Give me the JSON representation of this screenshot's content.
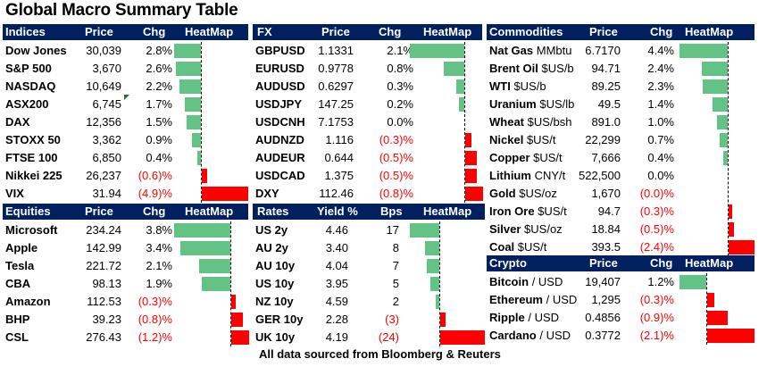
{
  "title": "Global Macro Summary Table",
  "footer": "All data sourced from Bloomberg & Reuters",
  "colors": {
    "header_bg": "#002060",
    "positive_bar": "#63c384",
    "negative_bar": "#ff0000",
    "negative_text": "#ff0000"
  },
  "indices": {
    "headers": [
      "Indices",
      "Price",
      "Chg",
      "HeatMap"
    ],
    "rows": [
      {
        "name": "Dow Jones",
        "price": "30,039",
        "chg": "2.8%",
        "value": 2.8
      },
      {
        "name": "S&P 500",
        "price": "3,670",
        "chg": "2.6%",
        "value": 2.6
      },
      {
        "name": "NASDAQ",
        "price": "10,649",
        "chg": "2.2%",
        "value": 2.2
      },
      {
        "name": "ASX200",
        "price": "6,745",
        "chg": "1.7%",
        "value": 1.7
      },
      {
        "name": "DAX",
        "price": "12,356",
        "chg": "1.5%",
        "value": 1.5
      },
      {
        "name": "STOXX 50",
        "price": "3,362",
        "chg": "0.9%",
        "value": 0.9
      },
      {
        "name": "FTSE 100",
        "price": "6,850",
        "chg": "0.4%",
        "value": 0.4
      },
      {
        "name": "Nikkei 225",
        "price": "26,237",
        "chg": "(0.6)%",
        "value": -0.6
      },
      {
        "name": "VIX",
        "price": "31.94",
        "chg": "(4.9)%",
        "value": -4.9
      }
    ]
  },
  "equities": {
    "headers": [
      "Equities",
      "Price",
      "Chg",
      "HeatMap"
    ],
    "rows": [
      {
        "name": "Microsoft",
        "price": "234.24",
        "chg": "3.8%",
        "value": 3.8
      },
      {
        "name": "Apple",
        "price": "142.99",
        "chg": "3.4%",
        "value": 3.4
      },
      {
        "name": "Tesla",
        "price": "221.72",
        "chg": "2.1%",
        "value": 2.1
      },
      {
        "name": "CBA",
        "price": "98.13",
        "chg": "1.9%",
        "value": 1.9
      },
      {
        "name": "Amazon",
        "price": "112.53",
        "chg": "(0.3)%",
        "value": -0.3
      },
      {
        "name": "BHP",
        "price": "39.23",
        "chg": "(0.8)%",
        "value": -0.8
      },
      {
        "name": "CSL",
        "price": "276.43",
        "chg": "(1.2)%",
        "value": -1.2
      }
    ]
  },
  "fx": {
    "headers": [
      "FX",
      "Price",
      "Chg",
      "HeatMap"
    ],
    "rows": [
      {
        "name": "GBPUSD",
        "price": "1.1331",
        "chg": "2.1%",
        "value": 2.1
      },
      {
        "name": "EURUSD",
        "price": "0.9778",
        "chg": "0.8%",
        "value": 0.8
      },
      {
        "name": "AUDUSD",
        "price": "0.6297",
        "chg": "0.3%",
        "value": 0.3
      },
      {
        "name": "USDJPY",
        "price": "147.25",
        "chg": "0.2%",
        "value": 0.2
      },
      {
        "name": "USDCNH",
        "price": "7.1753",
        "chg": "0.0%",
        "value": 0.0
      },
      {
        "name": "AUDNZD",
        "price": "1.116",
        "chg": "(0.3)%",
        "value": -0.3
      },
      {
        "name": "AUDEUR",
        "price": "0.644",
        "chg": "(0.5)%",
        "value": -0.5
      },
      {
        "name": "USDCAD",
        "price": "1.375",
        "chg": "(0.5)%",
        "value": -0.5
      },
      {
        "name": "DXY",
        "price": "112.46",
        "chg": "(0.8)%",
        "value": -0.8
      }
    ]
  },
  "rates": {
    "headers": [
      "Rates",
      "Yield %",
      "Bps",
      "HeatMap"
    ],
    "rows": [
      {
        "name": "US 2y",
        "price": "4.46",
        "chg": "17",
        "value": 17
      },
      {
        "name": "AU 2y",
        "price": "3.40",
        "chg": "8",
        "value": 8
      },
      {
        "name": "AU 10y",
        "price": "4.04",
        "chg": "7",
        "value": 7
      },
      {
        "name": "US 10y",
        "price": "3.95",
        "chg": "5",
        "value": 5
      },
      {
        "name": "NZ 10y",
        "price": "4.59",
        "chg": "2",
        "value": 2
      },
      {
        "name": "GER 10y",
        "price": "2.28",
        "chg": "(3)",
        "value": -3
      },
      {
        "name": "UK 10y",
        "price": "4.19",
        "chg": "(24)",
        "value": -24
      }
    ]
  },
  "commodities": {
    "headers": [
      "Commodities",
      "Price",
      "Chg",
      "HeatMap"
    ],
    "rows": [
      {
        "name": "Nat Gas",
        "unit": "MMbtu",
        "price": "6.7170",
        "chg": "4.4%",
        "value": 4.4
      },
      {
        "name": "Brent Oil",
        "unit": "$US/b",
        "price": "94.71",
        "chg": "2.4%",
        "value": 2.4
      },
      {
        "name": "WTI",
        "unit": "$US/b",
        "price": "89.25",
        "chg": "2.3%",
        "value": 2.3
      },
      {
        "name": "Uranium",
        "unit": "$US/lb",
        "price": "49.5",
        "chg": "1.4%",
        "value": 1.4
      },
      {
        "name": "Wheat",
        "unit": "$US/bsh",
        "price": "891.0",
        "chg": "1.0%",
        "value": 1.0
      },
      {
        "name": "Nickel",
        "unit": "$US/t",
        "price": "22,299",
        "chg": "0.7%",
        "value": 0.7
      },
      {
        "name": "Copper",
        "unit": "$US/t",
        "price": "7,666",
        "chg": "0.4%",
        "value": 0.4
      },
      {
        "name": "Lithium",
        "unit": "CNY/t",
        "price": "522,500",
        "chg": "0.0%",
        "value": 0.0
      },
      {
        "name": "Gold",
        "unit": "$US/oz",
        "price": "1,670",
        "chg": "(0.0)%",
        "value": -0.01
      },
      {
        "name": "Iron Ore",
        "unit": "$US/t",
        "price": "94.7",
        "chg": "(0.3)%",
        "value": -0.3
      },
      {
        "name": "Silver",
        "unit": "$US/oz",
        "price": "18.84",
        "chg": "(0.5)%",
        "value": -0.5
      },
      {
        "name": "Coal",
        "unit": "$US/t",
        "price": "393.5",
        "chg": "(2.4)%",
        "value": -2.4
      }
    ]
  },
  "crypto": {
    "headers": [
      "Crypto",
      "Price",
      "Chg",
      "HeatMap"
    ],
    "rows": [
      {
        "name": "Bitcoin",
        "unit": "/ USD",
        "price": "19,407",
        "chg": "1.2%",
        "value": 1.2
      },
      {
        "name": "Ethereum",
        "unit": "/ USD",
        "price": "1,295",
        "chg": "(0.3)%",
        "value": -0.3
      },
      {
        "name": "Ripple",
        "unit": "/ USD",
        "price": "0.4856",
        "chg": "(0.9)%",
        "value": -0.9
      },
      {
        "name": "Cardano",
        "unit": "/ USD",
        "price": "0.3772",
        "chg": "(2.1)%",
        "value": -2.1
      }
    ]
  }
}
